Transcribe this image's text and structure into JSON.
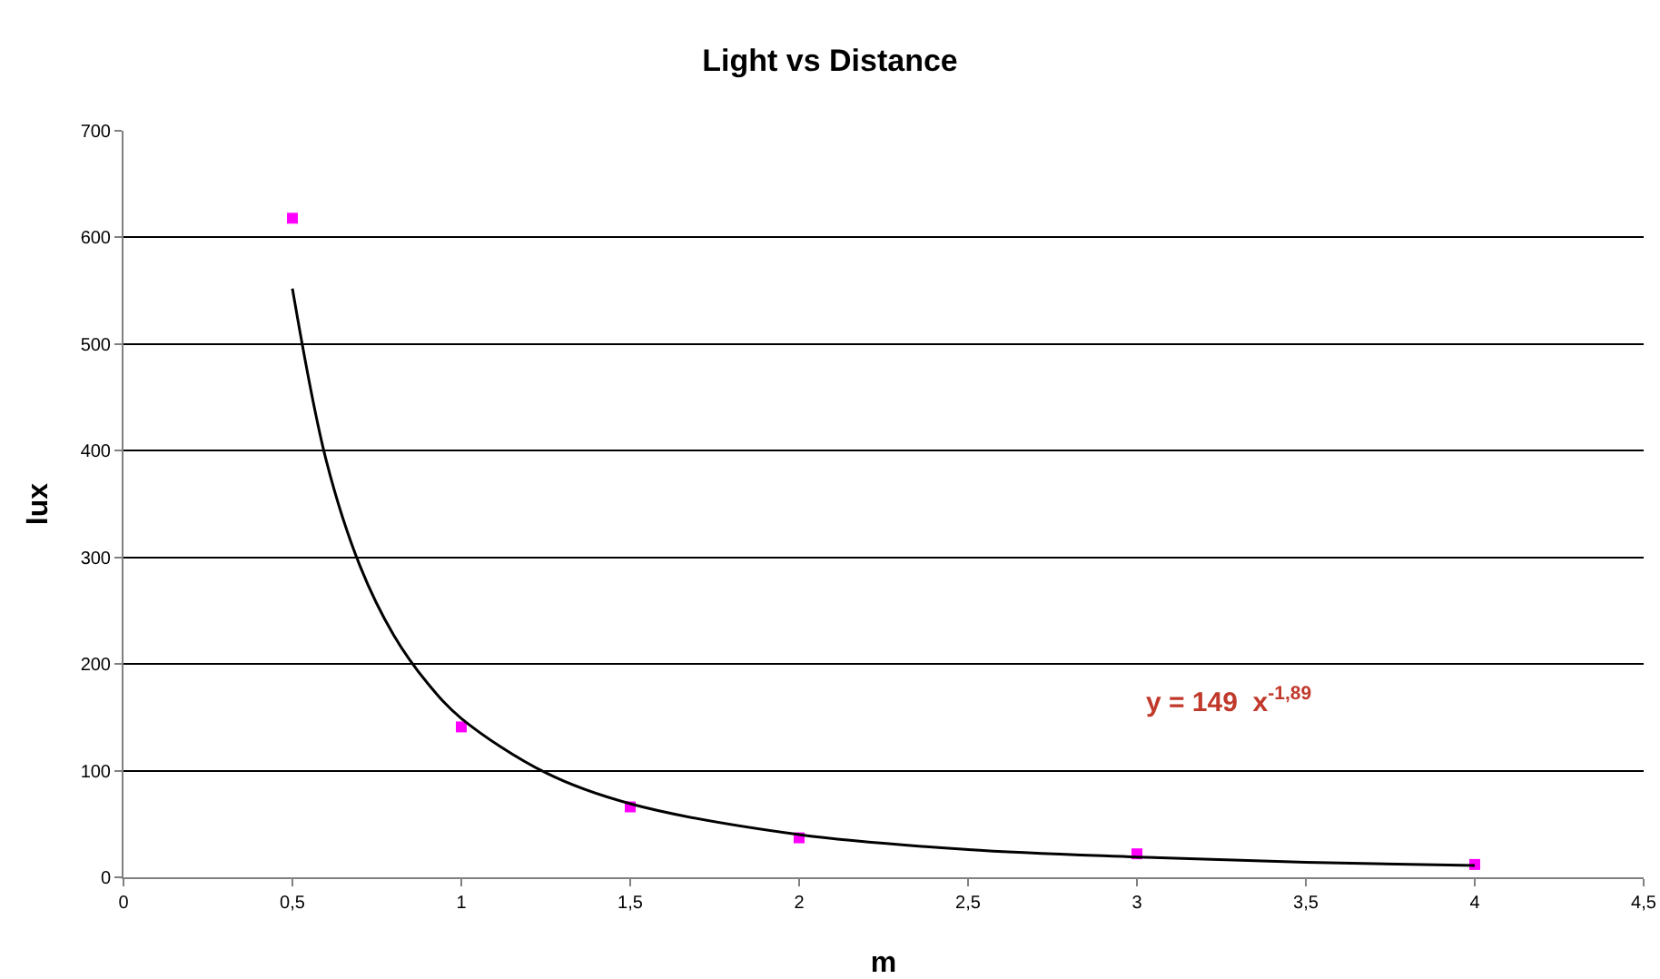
{
  "chart_data": {
    "type": "scatter",
    "title": "Light vs Distance",
    "xlabel": "m",
    "ylabel": "lux",
    "marker": "square",
    "grid": "y",
    "xlim": [
      0,
      4.5
    ],
    "xticks": [
      0,
      {
        "value": 0.5,
        "label": "0,5"
      },
      1,
      {
        "value": 1.5,
        "label": "1,5"
      },
      2,
      {
        "value": 2.5,
        "label": "2,5"
      },
      3,
      {
        "value": 3.5,
        "label": "3,5"
      },
      4,
      {
        "value": 4.5,
        "label": "4,5"
      }
    ],
    "ylim": [
      0,
      700
    ],
    "yticks": [
      0,
      100,
      200,
      300,
      400,
      500,
      600,
      700
    ],
    "x": [
      0.5,
      1,
      1.5,
      2,
      3,
      4
    ],
    "series": [
      {
        "color": "#ff00ff",
        "values": [
          618,
          141,
          66,
          37,
          22,
          12
        ]
      },
      {
        "type": "line",
        "color": "#000000",
        "line_style": "solid",
        "marker": "none",
        "x": [
          0.5,
          0.6,
          0.7,
          0.8,
          0.9,
          1,
          1.25,
          1.5,
          2,
          2.5,
          3,
          3.5,
          4
        ],
        "values": [
          552,
          391,
          292,
          227,
          182,
          149,
          98,
          69,
          40,
          26,
          19,
          14,
          11
        ]
      }
    ],
    "annotations": [
      "y = 149  x$^{-1,89}$"
    ]
  }
}
